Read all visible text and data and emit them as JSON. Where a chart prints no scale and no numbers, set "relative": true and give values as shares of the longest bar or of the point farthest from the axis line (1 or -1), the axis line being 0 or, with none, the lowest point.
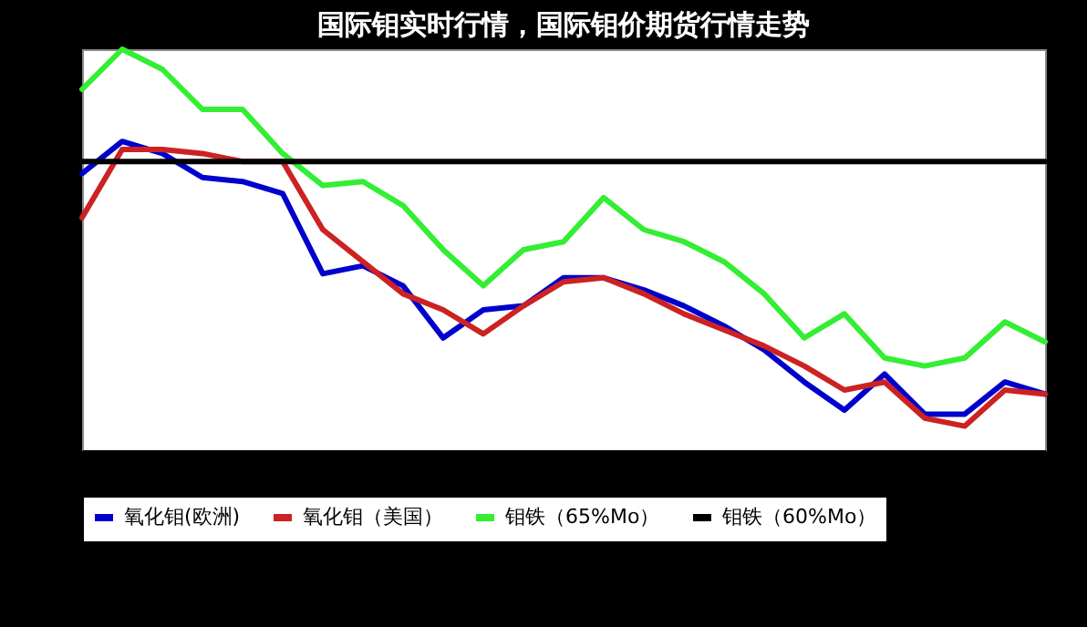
{
  "chart_data": {
    "type": "line",
    "title": "国际钼实时行情，国际钼价期货行情走势",
    "relative": true,
    "legend": "bottom",
    "categories": [
      null,
      null,
      null,
      null,
      null,
      null,
      null,
      null,
      null,
      null,
      null,
      null,
      null,
      null,
      null,
      null,
      null,
      null,
      null,
      null,
      null,
      null,
      null,
      null,
      null
    ],
    "series": [
      {
        "name": "氧化钼(欧洲)",
        "color": "#0000cc",
        "values": [
          0.69,
          0.77,
          0.74,
          0.68,
          0.67,
          0.64,
          0.44,
          0.46,
          0.41,
          0.28,
          0.35,
          0.36,
          0.43,
          0.43,
          0.4,
          0.36,
          0.31,
          0.25,
          0.17,
          0.1,
          0.19,
          0.09,
          0.09,
          0.17,
          0.14
        ]
      },
      {
        "name": "氧化钼（美国）",
        "color": "#cc2222",
        "values": [
          0.58,
          0.75,
          0.75,
          0.74,
          0.72,
          0.72,
          0.55,
          0.47,
          0.39,
          0.35,
          0.29,
          0.36,
          0.42,
          0.43,
          0.39,
          0.34,
          0.3,
          0.26,
          0.21,
          0.15,
          0.17,
          0.08,
          0.06,
          0.15,
          0.14
        ]
      },
      {
        "name": "钼铁（65%Mo）",
        "color": "#33ee33",
        "values": [
          0.9,
          1.0,
          0.95,
          0.85,
          0.85,
          0.74,
          0.66,
          0.67,
          0.61,
          0.5,
          0.41,
          0.5,
          0.52,
          0.63,
          0.55,
          0.52,
          0.47,
          0.39,
          0.28,
          0.34,
          0.23,
          0.21,
          0.23,
          0.32,
          0.27
        ]
      },
      {
        "name": "钼铁（60%Mo）",
        "color": "#000000",
        "values": [
          0.72,
          0.72,
          0.72,
          0.72,
          0.72,
          0.72,
          0.72,
          0.72,
          0.72,
          0.72,
          0.72,
          0.72,
          0.72,
          0.72,
          0.72,
          0.72,
          0.72,
          0.72,
          0.72,
          0.72,
          0.72,
          0.72,
          0.72,
          0.72,
          0.72
        ]
      }
    ]
  }
}
